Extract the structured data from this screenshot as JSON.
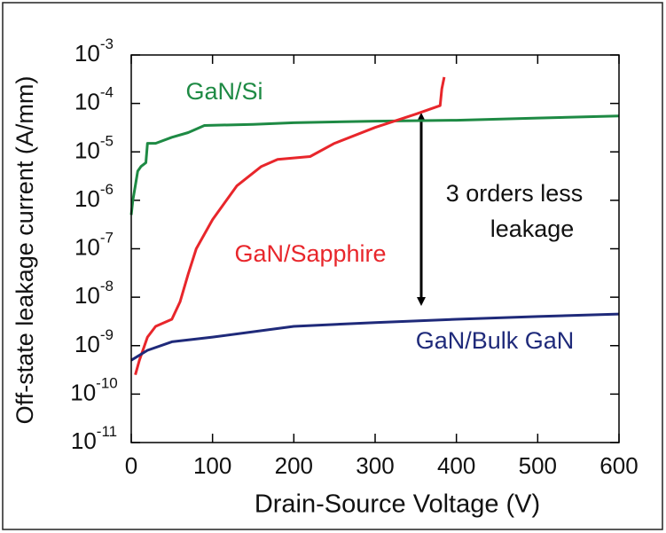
{
  "chart_data": {
    "type": "line",
    "xlabel": "Drain-Source Voltage (V)",
    "ylabel": "Off-state leakage current (A/mm)",
    "annotations": [
      "3 orders less",
      "leakage"
    ],
    "xlim": [
      0,
      600
    ],
    "xticks": [
      0,
      100,
      200,
      300,
      400,
      500,
      600
    ],
    "ylim": [
      1e-11,
      0.001
    ],
    "log_y": true,
    "yticks": [
      {
        "value": 0.001,
        "label": "10",
        "exponent": "-3"
      },
      {
        "value": 0.0001,
        "label": "10",
        "exponent": "-4"
      },
      {
        "value": 1e-05,
        "label": "10",
        "exponent": "-5"
      },
      {
        "value": 1e-06,
        "label": "10",
        "exponent": "-6"
      },
      {
        "value": 1e-07,
        "label": "10",
        "exponent": "-7"
      },
      {
        "value": 1e-08,
        "label": "10",
        "exponent": "-8"
      },
      {
        "value": 1e-09,
        "label": "10",
        "exponent": "-9"
      },
      {
        "value": 1e-10,
        "label": "10",
        "exponent": "-10"
      },
      {
        "value": 1e-11,
        "label": "10",
        "exponent": "-11"
      }
    ],
    "series": [
      {
        "name": "GaN/Si",
        "color": "#1e8a44",
        "x": [
          0,
          2,
          5,
          8,
          12,
          18,
          20,
          30,
          50,
          70,
          90,
          150,
          200,
          300,
          400,
          500,
          600
        ],
        "values": [
          5e-07,
          1e-06,
          2e-06,
          4e-06,
          5e-06,
          6e-06,
          1.5e-05,
          1.5e-05,
          2e-05,
          2.5e-05,
          3.5e-05,
          3.7e-05,
          4e-05,
          4.3e-05,
          4.5e-05,
          5e-05,
          5.5e-05
        ]
      },
      {
        "name": "GaN/Sapphire",
        "color": "#e8262b",
        "x": [
          5,
          10,
          20,
          30,
          50,
          60,
          70,
          80,
          100,
          130,
          160,
          180,
          200,
          220,
          250,
          300,
          350,
          380,
          382,
          385
        ],
        "values": [
          2.5e-10,
          5e-10,
          1.5e-09,
          2.5e-09,
          3.5e-09,
          8e-09,
          3e-08,
          1e-07,
          4e-07,
          2e-06,
          5e-06,
          7e-06,
          7.5e-06,
          8e-06,
          1.5e-05,
          3.2e-05,
          6e-05,
          9e-05,
          0.0002,
          0.00035
        ]
      },
      {
        "name": "GaN/Bulk GaN",
        "color": "#1f2a7a",
        "x": [
          0,
          20,
          50,
          100,
          200,
          300,
          400,
          500,
          600
        ],
        "values": [
          5e-10,
          8e-10,
          1.2e-09,
          1.5e-09,
          2.5e-09,
          3e-09,
          3.5e-09,
          4e-09,
          4.5e-09
        ]
      }
    ]
  }
}
